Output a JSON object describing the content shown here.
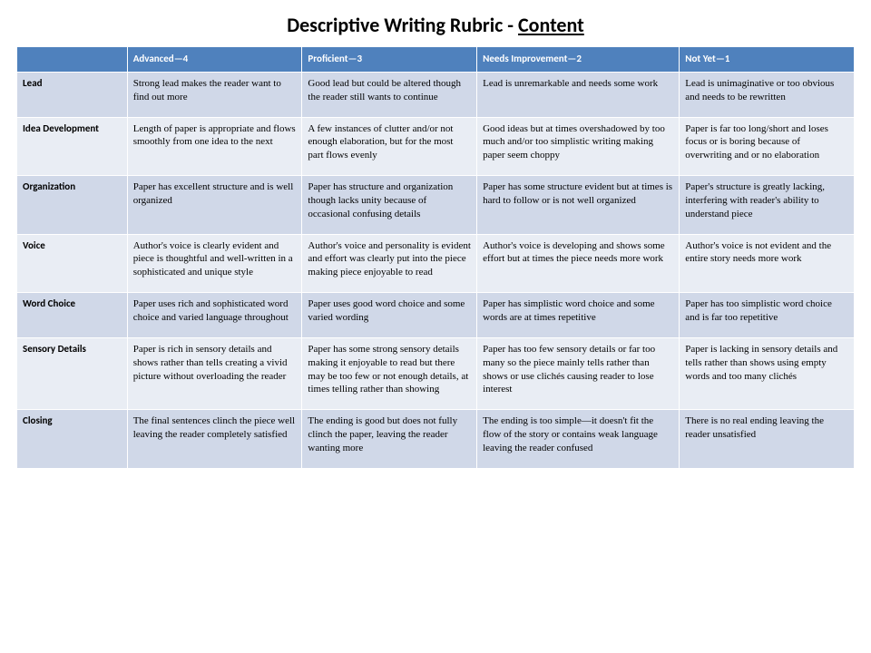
{
  "title_prefix": "Descriptive Writing Rubric - ",
  "title_underlined": "Content",
  "colors": {
    "header_bg": "#4f81bd",
    "header_text": "#ffffff",
    "band_a": "#d0d8e8",
    "band_b": "#e9edf4",
    "cell_border": "#ffffff"
  },
  "columns": [
    "",
    "Advanced—4",
    "Proficient—3",
    "Needs Improvement—2",
    "Not Yet—1"
  ],
  "rows": [
    {
      "label": "Lead",
      "cells": [
        "Strong lead makes the reader want to find out more",
        "Good lead but could be altered though the reader still wants to continue",
        "Lead is unremarkable and needs some work",
        "Lead is unimaginative or too obvious and needs to be rewritten"
      ]
    },
    {
      "label": "Idea Development",
      "cells": [
        "Length of paper is appropriate and flows smoothly from one idea to the next",
        "A few instances of clutter and/or not enough elaboration, but for the most part flows evenly",
        "Good ideas but at times overshadowed by too much and/or too simplistic writing making paper seem choppy",
        "Paper is far too long/short and loses focus or is boring because of overwriting and or no elaboration"
      ]
    },
    {
      "label": "Organization",
      "cells": [
        "Paper has excellent structure and is well organized",
        "Paper has structure and organization though lacks unity because of occasional confusing details",
        "Paper has some structure evident but at times is hard to follow or is not well organized",
        "Paper's structure is greatly lacking, interfering with reader's ability to understand piece"
      ]
    },
    {
      "label": "Voice",
      "cells": [
        "Author's voice is clearly evident and piece is thoughtful and well-written in a sophisticated and unique style",
        "Author's voice and personality is evident and effort was clearly put into the piece making piece enjoyable to read",
        "Author's voice is developing and shows some effort but at times the piece needs more work",
        "Author's voice is not evident and the entire story needs more work"
      ]
    },
    {
      "label": "Word Choice",
      "cells": [
        "Paper uses rich and sophisticated word choice and varied language throughout",
        "Paper uses good word choice and some varied wording",
        "Paper has simplistic word choice and some words are at times repetitive",
        "Paper has too simplistic word choice and is far too repetitive"
      ]
    },
    {
      "label": "Sensory Details",
      "cells": [
        "Paper is rich in sensory details and shows rather than tells creating a vivid picture without overloading the reader",
        "Paper has some strong sensory details making it enjoyable to read but there may be too few or not enough details, at times telling rather than showing",
        "Paper has too few sensory details or far too many so the piece mainly tells rather than shows or use clichés causing reader to lose interest",
        "Paper is lacking in sensory details and tells rather than shows using empty words and too many clichés"
      ]
    },
    {
      "label": "Closing",
      "cells": [
        "The final sentences clinch the piece well leaving the reader completely satisfied",
        "The ending is good but does not fully clinch the paper, leaving the reader wanting more",
        "The ending is too simple—it doesn't fit the flow of the story or contains weak language leaving the reader confused",
        "There is no real ending leaving the reader unsatisfied"
      ]
    }
  ]
}
